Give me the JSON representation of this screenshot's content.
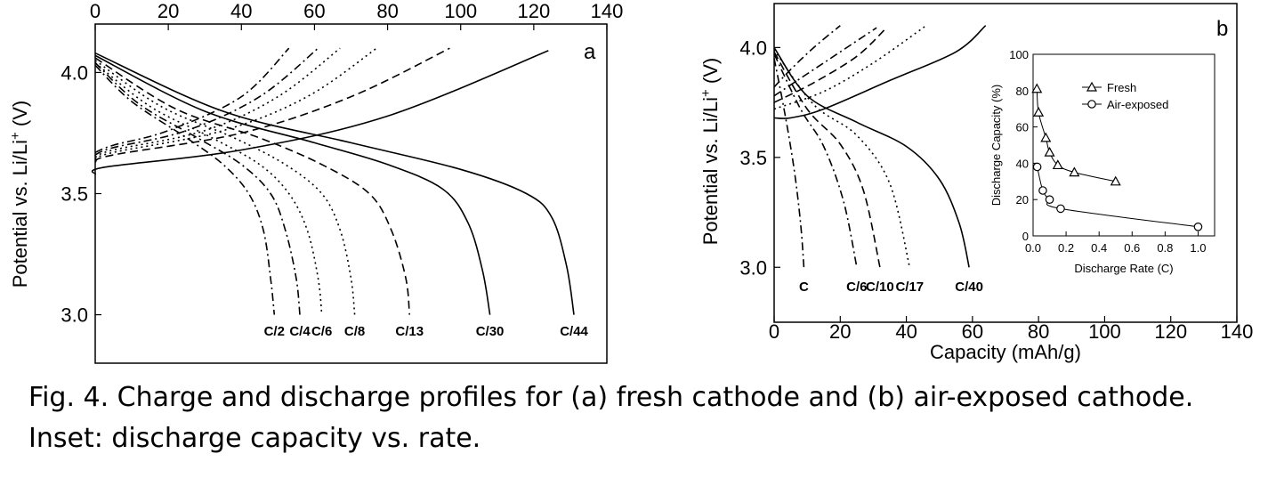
{
  "caption": {
    "line1": "Fig. 4. Charge and discharge profiles for (a) fresh cathode and (b) air-exposed cathode.",
    "line2": "Inset: discharge capacity vs. rate."
  },
  "chart_data": [
    {
      "panel": "a",
      "type": "line",
      "ylabel": "Potential vs. Li/Li+ (V)",
      "xlabel": "",
      "xlim": [
        0,
        140
      ],
      "ylim": [
        2.8,
        4.2
      ],
      "x_ticks": [
        0,
        20,
        40,
        60,
        80,
        100,
        120,
        140
      ],
      "y_ticks": [
        3.0,
        3.5,
        4.0
      ],
      "x_axis_position": "top",
      "series": [
        {
          "name": "C/2",
          "style": "dashdot",
          "charge_end": 53,
          "discharge_end": 49,
          "charge": [
            [
              0,
              3.67
            ],
            [
              5,
              3.7
            ],
            [
              20,
              3.76
            ],
            [
              40,
              3.9
            ],
            [
              53,
              4.1
            ]
          ],
          "discharge": [
            [
              0,
              4.03
            ],
            [
              10,
              3.88
            ],
            [
              25,
              3.73
            ],
            [
              35,
              3.62
            ],
            [
              42,
              3.5
            ],
            [
              46,
              3.35
            ],
            [
              48,
              3.15
            ],
            [
              49,
              3.0
            ]
          ]
        },
        {
          "name": "C/4",
          "style": "dashdot",
          "charge_end": 61,
          "discharge_end": 56,
          "charge": [
            [
              0,
              3.66
            ],
            [
              5,
              3.69
            ],
            [
              25,
              3.76
            ],
            [
              45,
              3.9
            ],
            [
              61,
              4.1
            ]
          ],
          "discharge": [
            [
              0,
              4.04
            ],
            [
              12,
              3.87
            ],
            [
              28,
              3.73
            ],
            [
              40,
              3.62
            ],
            [
              48,
              3.5
            ],
            [
              52,
              3.35
            ],
            [
              55,
              3.15
            ],
            [
              56,
              3.0
            ]
          ]
        },
        {
          "name": "C/6",
          "style": "dotted",
          "charge_end": 67,
          "discharge_end": 62,
          "charge": [
            [
              0,
              3.65
            ],
            [
              5,
              3.68
            ],
            [
              30,
              3.76
            ],
            [
              50,
              3.9
            ],
            [
              67,
              4.1
            ]
          ],
          "discharge": [
            [
              0,
              4.04
            ],
            [
              15,
              3.86
            ],
            [
              32,
              3.73
            ],
            [
              45,
              3.62
            ],
            [
              53,
              3.5
            ],
            [
              58,
              3.35
            ],
            [
              61,
              3.15
            ],
            [
              62,
              3.0
            ]
          ]
        },
        {
          "name": "C/8",
          "style": "dotted",
          "charge_end": 77,
          "discharge_end": 71,
          "charge": [
            [
              0,
              3.64
            ],
            [
              5,
              3.67
            ],
            [
              35,
              3.76
            ],
            [
              58,
              3.9
            ],
            [
              77,
              4.1
            ]
          ],
          "discharge": [
            [
              0,
              4.05
            ],
            [
              18,
              3.86
            ],
            [
              38,
              3.73
            ],
            [
              52,
              3.62
            ],
            [
              62,
              3.5
            ],
            [
              67,
              3.35
            ],
            [
              70,
              3.15
            ],
            [
              71,
              3.0
            ]
          ]
        },
        {
          "name": "C/13",
          "style": "dashed",
          "charge_end": 97,
          "discharge_end": 86,
          "charge": [
            [
              0,
              3.63
            ],
            [
              5,
              3.66
            ],
            [
              40,
              3.75
            ],
            [
              70,
              3.9
            ],
            [
              97,
              4.1
            ]
          ],
          "discharge": [
            [
              0,
              4.06
            ],
            [
              22,
              3.85
            ],
            [
              45,
              3.73
            ],
            [
              62,
              3.62
            ],
            [
              75,
              3.5
            ],
            [
              81,
              3.35
            ],
            [
              85,
              3.15
            ],
            [
              86,
              3.0
            ]
          ]
        },
        {
          "name": "C/30",
          "style": "solid",
          "charge_end": 124,
          "discharge_end": 108,
          "charge": [
            [
              0,
              3.58
            ],
            [
              3,
              3.61
            ],
            [
              40,
              3.68
            ],
            [
              80,
              3.82
            ],
            [
              124,
              4.09
            ]
          ],
          "discharge": [
            [
              0,
              4.07
            ],
            [
              30,
              3.84
            ],
            [
              60,
              3.71
            ],
            [
              80,
              3.62
            ],
            [
              95,
              3.52
            ],
            [
              102,
              3.38
            ],
            [
              106,
              3.18
            ],
            [
              108,
              3.0
            ]
          ]
        },
        {
          "name": "C/44",
          "style": "solid",
          "charge_end": null,
          "discharge_end": 131,
          "discharge": [
            [
              0,
              4.08
            ],
            [
              35,
              3.84
            ],
            [
              70,
              3.71
            ],
            [
              100,
              3.6
            ],
            [
              118,
              3.5
            ],
            [
              125,
              3.4
            ],
            [
              129,
              3.2
            ],
            [
              131,
              3.0
            ]
          ]
        }
      ]
    },
    {
      "panel": "b",
      "type": "line",
      "ylabel": "Potential vs. Li/Li+ (V)",
      "xlabel": "Capacity (mAh/g)",
      "xlim": [
        0,
        140
      ],
      "ylim": [
        2.75,
        4.2
      ],
      "x_ticks": [
        0,
        20,
        40,
        60,
        80,
        100,
        120,
        140
      ],
      "y_ticks": [
        3.0,
        3.5,
        4.0
      ],
      "series": [
        {
          "name": "C",
          "style": "dashdot",
          "discharge_end": 9,
          "charge": [
            [
              0,
              3.82
            ],
            [
              5,
              3.9
            ],
            [
              12,
              4.0
            ],
            [
              20,
              4.1
            ]
          ],
          "discharge": [
            [
              0,
              3.95
            ],
            [
              3,
              3.72
            ],
            [
              6,
              3.45
            ],
            [
              8,
              3.2
            ],
            [
              9,
              3.0
            ]
          ]
        },
        {
          "name": "C/6",
          "style": "dashdot",
          "discharge_end": 25,
          "charge": [
            [
              0,
              3.78
            ],
            [
              10,
              3.88
            ],
            [
              20,
              3.98
            ],
            [
              31,
              4.09
            ]
          ],
          "discharge": [
            [
              0,
              3.97
            ],
            [
              8,
              3.72
            ],
            [
              15,
              3.55
            ],
            [
              21,
              3.3
            ],
            [
              25,
              3.0
            ]
          ]
        },
        {
          "name": "C/10",
          "style": "dashed",
          "discharge_end": 32,
          "charge": [
            [
              0,
              3.75
            ],
            [
              12,
              3.84
            ],
            [
              25,
              3.96
            ],
            [
              34,
              4.09
            ]
          ],
          "discharge": [
            [
              0,
              3.98
            ],
            [
              10,
              3.72
            ],
            [
              20,
              3.56
            ],
            [
              27,
              3.35
            ],
            [
              32,
              3.0
            ]
          ]
        },
        {
          "name": "C/17",
          "style": "dotted",
          "discharge_end": 41,
          "charge": [
            [
              0,
              3.72
            ],
            [
              15,
              3.8
            ],
            [
              30,
              3.93
            ],
            [
              46,
              4.1
            ]
          ],
          "discharge": [
            [
              0,
              3.99
            ],
            [
              12,
              3.74
            ],
            [
              25,
              3.6
            ],
            [
              35,
              3.38
            ],
            [
              41,
              3.0
            ]
          ]
        },
        {
          "name": "C/40",
          "style": "solid",
          "discharge_end": 59,
          "charge": [
            [
              0,
              3.68
            ],
            [
              5,
              3.68
            ],
            [
              15,
              3.72
            ],
            [
              35,
              3.85
            ],
            [
              55,
              3.98
            ],
            [
              64,
              4.1
            ]
          ],
          "discharge": [
            [
              0,
              4.0
            ],
            [
              10,
              3.78
            ],
            [
              25,
              3.66
            ],
            [
              40,
              3.55
            ],
            [
              50,
              3.4
            ],
            [
              56,
              3.2
            ],
            [
              59,
              3.0
            ]
          ]
        }
      ],
      "inset": {
        "type": "scatter",
        "xlabel": "Discharge Rate (C)",
        "ylabel": "Discharge Capacity (%)",
        "xlim": [
          0,
          1.1
        ],
        "ylim": [
          0,
          100
        ],
        "x_ticks": [
          "0.0",
          "0.2",
          "0.4",
          "0.6",
          "0.8",
          "1.0"
        ],
        "y_ticks": [
          "0",
          "20",
          "40",
          "60",
          "80",
          "100"
        ],
        "x_tick_vals": [
          0,
          0.2,
          0.4,
          0.6,
          0.8,
          1.0
        ],
        "y_tick_vals": [
          0,
          20,
          40,
          60,
          80,
          100
        ],
        "legend": [
          "Fresh",
          "Air-exposed"
        ],
        "series": [
          {
            "name": "Fresh",
            "marker": "triangle",
            "x": [
              0.023,
              0.033,
              0.077,
              0.1,
              0.15,
              0.25,
              0.5
            ],
            "y": [
              81,
              68,
              54,
              46,
              39,
              35,
              30
            ]
          },
          {
            "name": "Air-exposed",
            "marker": "circle",
            "x": [
              0.025,
              0.059,
              0.1,
              0.167,
              1.0
            ],
            "y": [
              38,
              25,
              20,
              15,
              5
            ]
          }
        ]
      }
    }
  ],
  "panel_letters": {
    "a": "a",
    "b": "b"
  }
}
